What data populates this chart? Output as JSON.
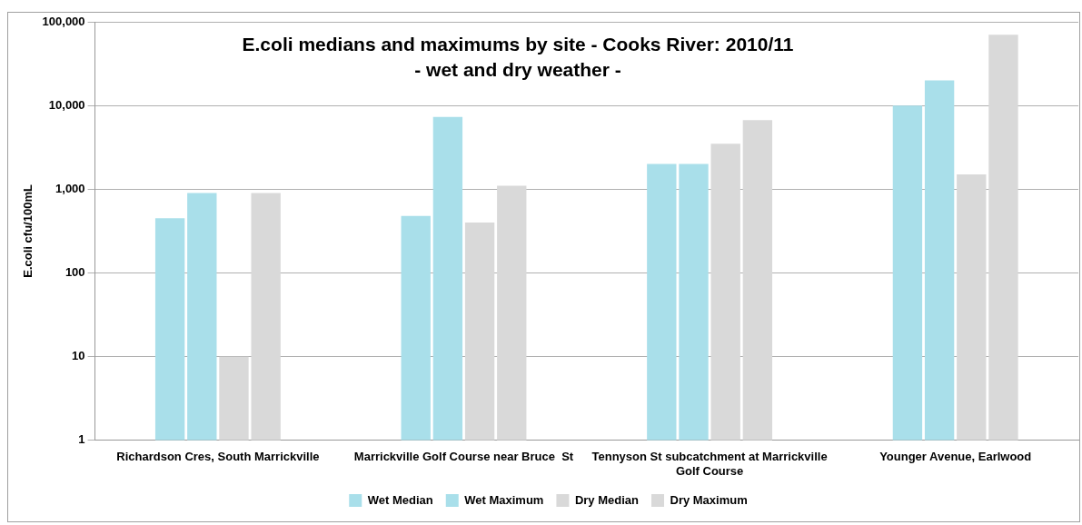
{
  "chart_data": {
    "type": "bar",
    "title": "E.coli medians and maximums by site - Cooks River: 2010/11",
    "subtitle": "- wet and dry weather -",
    "ylabel": "E.coli cfu/100mL",
    "categories": [
      "Richardson Cres, South Marrickville",
      "Marrickville Golf Course near Bruce  St",
      "Tennyson St subcatchment at Marrickville Golf Course",
      "Younger Avenue, Earlwood"
    ],
    "series": [
      {
        "name": "Wet Median",
        "color": "#a9dfea",
        "values": [
          450,
          480,
          2000,
          10000
        ]
      },
      {
        "name": "Wet Maximum",
        "color": "#a9dfea",
        "values": [
          900,
          7300,
          2000,
          20000
        ]
      },
      {
        "name": "Dry Median",
        "color": "#d9d9d9",
        "values": [
          10,
          400,
          3500,
          1500
        ]
      },
      {
        "name": "Dry Maximum",
        "color": "#d9d9d9",
        "values": [
          900,
          1100,
          6700,
          70000
        ]
      }
    ],
    "log": true,
    "ylim": [
      1,
      100000
    ],
    "yticks": [
      1,
      10,
      100,
      {
        "value": 1000,
        "label": "1,000"
      },
      {
        "value": 10000,
        "label": "10,000"
      },
      {
        "value": 100000,
        "label": "100,000"
      }
    ],
    "grid": "y",
    "legend": "bottom"
  }
}
